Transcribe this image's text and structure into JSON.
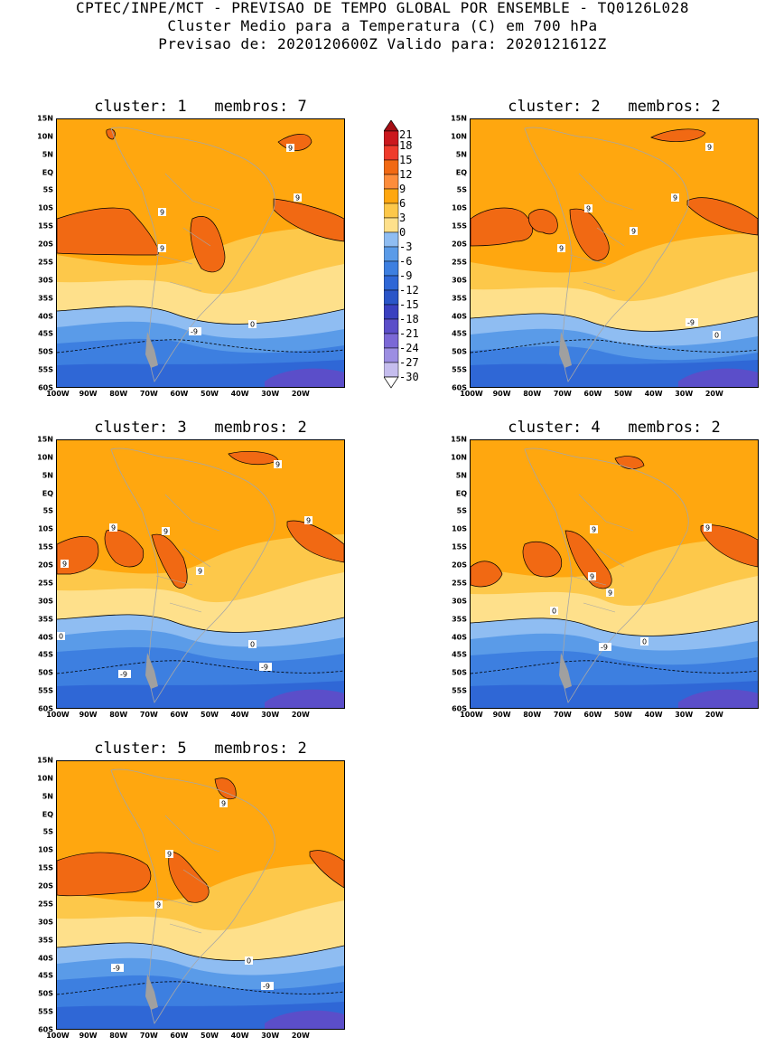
{
  "header": {
    "line1": "CPTEC/INPE/MCT - PREVISAO DE TEMPO GLOBAL POR ENSEMBLE - TQ0126L028",
    "line2": "Cluster Medio para a Temperatura (C) em 700 hPa",
    "line3": "Previsao de: 2020120600Z   Valido para: 2020121612Z"
  },
  "colorbar": {
    "labels": [
      "21",
      "18",
      "15",
      "12",
      "9",
      "6",
      "3",
      "0",
      "-3",
      "-6",
      "-9",
      "-12",
      "-15",
      "-18",
      "-21",
      "-24",
      "-27",
      "-30"
    ],
    "colors": [
      "#a50f15",
      "#cb181d",
      "#ef3b2c",
      "#f16913",
      "#fd8d3c",
      "#ffa70f",
      "#fdc84a",
      "#fee08b",
      "#8fbdf2",
      "#5a9be8",
      "#3d7fe0",
      "#2f67d6",
      "#2a55c8",
      "#3a40c0",
      "#5b4ec9",
      "#7b68d6",
      "#9c8ee2",
      "#c5bdee",
      "#ffffff"
    ]
  },
  "axes": {
    "lat_labels": [
      "15N",
      "10N",
      "5N",
      "EQ",
      "5S",
      "10S",
      "15S",
      "20S",
      "25S",
      "30S",
      "35S",
      "40S",
      "45S",
      "50S",
      "55S",
      "60S"
    ],
    "lon_labels": [
      "100W",
      "90W",
      "80W",
      "70W",
      "60W",
      "50W",
      "40W",
      "30W",
      "20W"
    ]
  },
  "colors": {
    "c_sea_high": "#ffa70f",
    "c_red": "#f16913",
    "c_warm": "#fdc84a",
    "c_yellow": "#fee08b",
    "c_lblue": "#8fbdf2",
    "c_blue": "#5a9be8",
    "c_dblue": "#3d7fe0",
    "c_navy": "#2f67d6",
    "c_purple": "#5b4ec9",
    "coast": "#a6a6a6"
  },
  "panels": [
    {
      "title": "cluster: 1   membros: 7",
      "labels": [
        "9",
        "9",
        "9",
        "9",
        "0",
        "-9"
      ]
    },
    {
      "title": "cluster: 2   membros: 2",
      "labels": [
        "9",
        "9",
        "9",
        "9",
        "9",
        "0",
        "-9"
      ]
    },
    {
      "title": "cluster: 3   membros: 2",
      "labels": [
        "9",
        "9",
        "9",
        "9",
        "9",
        "9",
        "0",
        "0",
        "-9",
        "-9"
      ]
    },
    {
      "title": "cluster: 4   membros: 2",
      "labels": [
        "9",
        "9",
        "9",
        "9",
        "0",
        "0",
        "-9"
      ]
    },
    {
      "title": "cluster: 5   membros: 2",
      "labels": [
        "9",
        "9",
        "9",
        "0",
        "-9",
        "-9"
      ]
    }
  ]
}
